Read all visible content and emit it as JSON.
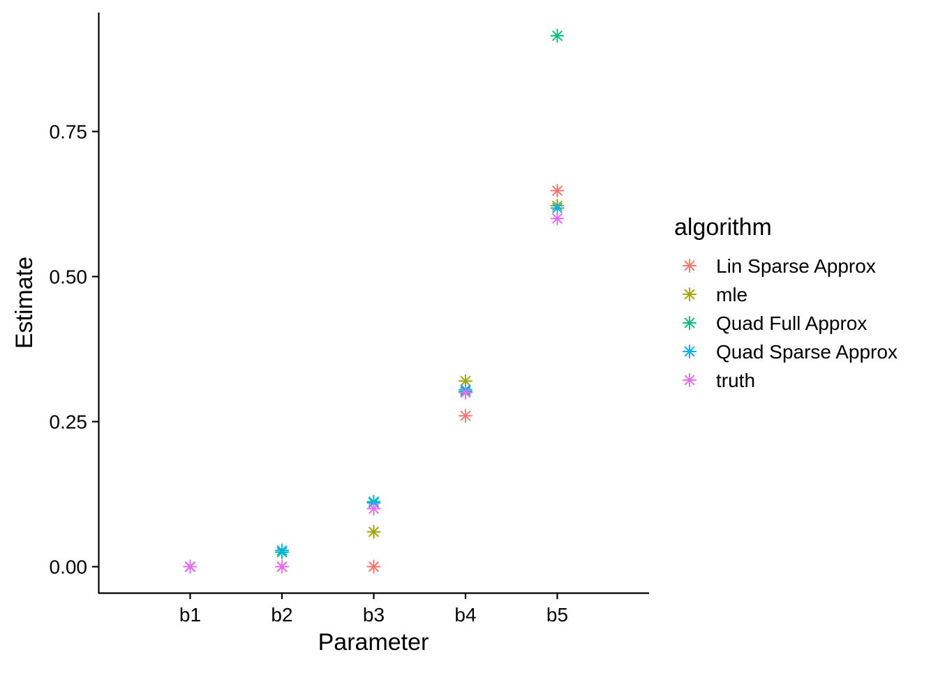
{
  "chart_data": {
    "type": "scatter",
    "title": "",
    "xlabel": "Parameter",
    "ylabel": "Estimate",
    "categories": [
      "b1",
      "b2",
      "b3",
      "b4",
      "b5"
    ],
    "y_ticks": [
      0.0,
      0.25,
      0.5,
      0.75
    ],
    "y_tick_labels": [
      "0.00",
      "0.25",
      "0.50",
      "0.75"
    ],
    "ylim": [
      -0.045,
      0.955
    ],
    "grid": false,
    "marker": "asterisk",
    "legend": {
      "title": "algorithm",
      "position": "right"
    },
    "series": [
      {
        "name": "Lin Sparse Approx",
        "color": "#F8766D",
        "values": [
          0.0,
          0.0,
          0.0,
          0.26,
          0.648
        ]
      },
      {
        "name": "mle",
        "color": "#A3A500",
        "values": [
          0.0,
          0.0,
          0.06,
          0.32,
          0.622
        ]
      },
      {
        "name": "Quad Full Approx",
        "color": "#00BF7D",
        "values": [
          0.0,
          0.025,
          0.112,
          0.302,
          0.915
        ]
      },
      {
        "name": "Quad Sparse Approx",
        "color": "#00B0F6",
        "values": [
          0.0,
          0.028,
          0.11,
          0.305,
          0.618
        ]
      },
      {
        "name": "truth",
        "color": "#E76BF3",
        "values": [
          0.0,
          0.0,
          0.1,
          0.3,
          0.6
        ]
      }
    ]
  }
}
